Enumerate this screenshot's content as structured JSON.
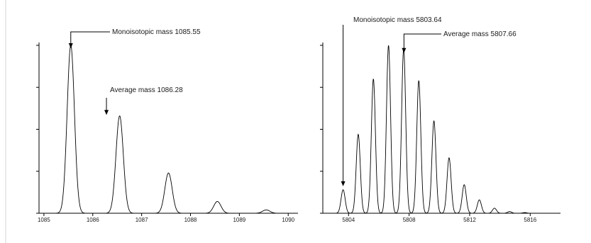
{
  "chart_data": [
    {
      "type": "line",
      "title": "",
      "xlabel": "",
      "ylabel": "",
      "xlim": [
        1084.9,
        1090.2
      ],
      "ylim": [
        0,
        100
      ],
      "x_ticks": [
        1085,
        1086,
        1087,
        1088,
        1089,
        1090
      ],
      "x_tick_labels": [
        "1085",
        "1086",
        "1087",
        "1088",
        "1089",
        "1090"
      ],
      "y_ticks": [
        0,
        25,
        50,
        75,
        100
      ],
      "peak_width": 0.075,
      "series": [
        {
          "x": [
            1085.55,
            1086.55,
            1087.55,
            1088.55,
            1089.55
          ],
          "values": [
            100,
            58,
            24,
            7,
            2
          ]
        }
      ],
      "annotations": [
        {
          "text": "Monoisotopic mass 1085.55",
          "x": 1085.55,
          "y": 100,
          "style": "elbow"
        },
        {
          "text": "Average mass 1086.28",
          "x": 1086.28,
          "y": 56,
          "style": "down"
        }
      ]
    },
    {
      "type": "line",
      "title": "",
      "xlabel": "",
      "ylabel": "",
      "xlim": [
        5802.3,
        5818.0
      ],
      "ylim": [
        0,
        100
      ],
      "x_ticks": [
        5804,
        5808,
        5812,
        5816
      ],
      "x_tick_labels": [
        "5804",
        "5808",
        "5812",
        "5816"
      ],
      "y_ticks": [
        0,
        25,
        50,
        75,
        100
      ],
      "peak_width": 0.135,
      "series": [
        {
          "x": [
            5803.64,
            5804.64,
            5805.64,
            5806.64,
            5807.64,
            5808.64,
            5809.64,
            5810.64,
            5811.64,
            5812.64,
            5813.64,
            5814.64,
            5815.64
          ],
          "values": [
            14,
            47,
            80,
            100,
            98,
            79,
            55,
            33,
            17,
            8,
            3,
            1,
            0.4
          ]
        }
      ],
      "annotations": [
        {
          "text": "Monoisotopic mass 5803.64",
          "x": 5803.64,
          "y": 14,
          "style": "down-long"
        },
        {
          "text": "Average mass 5807.66",
          "x": 5807.66,
          "y": 98,
          "style": "elbow"
        }
      ]
    }
  ]
}
